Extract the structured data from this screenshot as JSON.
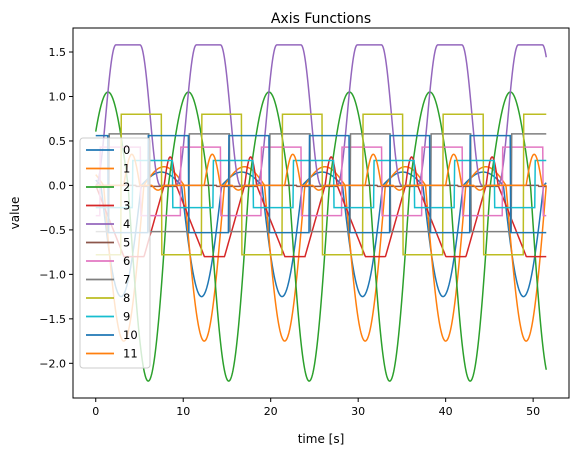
{
  "chart_data": {
    "type": "line",
    "title": "Axis Functions",
    "xlabel": "time [s]",
    "ylabel": "value",
    "xlim": [
      -2.6,
      54.1
    ],
    "ylim": [
      -2.39,
      1.77
    ],
    "x_ticks": [
      0,
      10,
      20,
      30,
      40,
      50
    ],
    "y_ticks": [
      -2.0,
      -1.5,
      -1.0,
      -0.5,
      0.0,
      0.5,
      1.0,
      1.5
    ],
    "x_tick_labels": [
      "0",
      "10",
      "20",
      "30",
      "40",
      "50"
    ],
    "y_tick_labels": [
      "−2.0",
      "−1.5",
      "−1.0",
      "−0.5",
      "0.0",
      "0.5",
      "1.0",
      "1.5"
    ],
    "grid": false,
    "legend_position": "center-left",
    "time_range": [
      0,
      51.5
    ],
    "period": 9.2,
    "phase_duration": 3.0,
    "series": [
      {
        "name": "0",
        "color": "#1f77b4",
        "kind": "half",
        "amp": 1.25,
        "phase": 0.6,
        "dir": -1
      },
      {
        "name": "1",
        "color": "#ff7f0e",
        "kind": "half",
        "amp": 1.75,
        "phase": 0.9,
        "dir": -1
      },
      {
        "name": "2",
        "color": "#2ca02c",
        "kind": "full",
        "amp": 1.05,
        "min": -2.2,
        "phase": 1.4
      },
      {
        "name": "3",
        "color": "#d62728",
        "kind": "ramp",
        "amp": 0.8,
        "phase": 0.0
      },
      {
        "name": "4",
        "color": "#9467bd",
        "kind": "plateau",
        "amp": 1.58,
        "phase": 0.0
      },
      {
        "name": "5",
        "color": "#8c564b",
        "kind": "step",
        "low": -0.01,
        "high": 0.0,
        "phase": 0.0
      },
      {
        "name": "6",
        "color": "#e377c2",
        "kind": "step",
        "low": -0.34,
        "high": 0.43,
        "phase": 0.5
      },
      {
        "name": "7",
        "color": "#7f7f7f",
        "kind": "step",
        "low": -0.52,
        "high": 0.58,
        "phase": 1.5
      },
      {
        "name": "8",
        "color": "#bcbd22",
        "kind": "step",
        "low": -0.78,
        "high": 0.8,
        "phase": 2.9
      },
      {
        "name": "9",
        "color": "#17becf",
        "kind": "step",
        "low": -0.25,
        "high": 0.28,
        "phase": 4.2
      },
      {
        "name": "10",
        "color": "#1f77b4",
        "kind": "step",
        "low": -0.53,
        "high": 0.56,
        "phase": 6.0
      },
      {
        "name": "11",
        "color": "#ff7f0e",
        "kind": "spike",
        "amp": 0.35,
        "phase": 3.2
      }
    ]
  }
}
